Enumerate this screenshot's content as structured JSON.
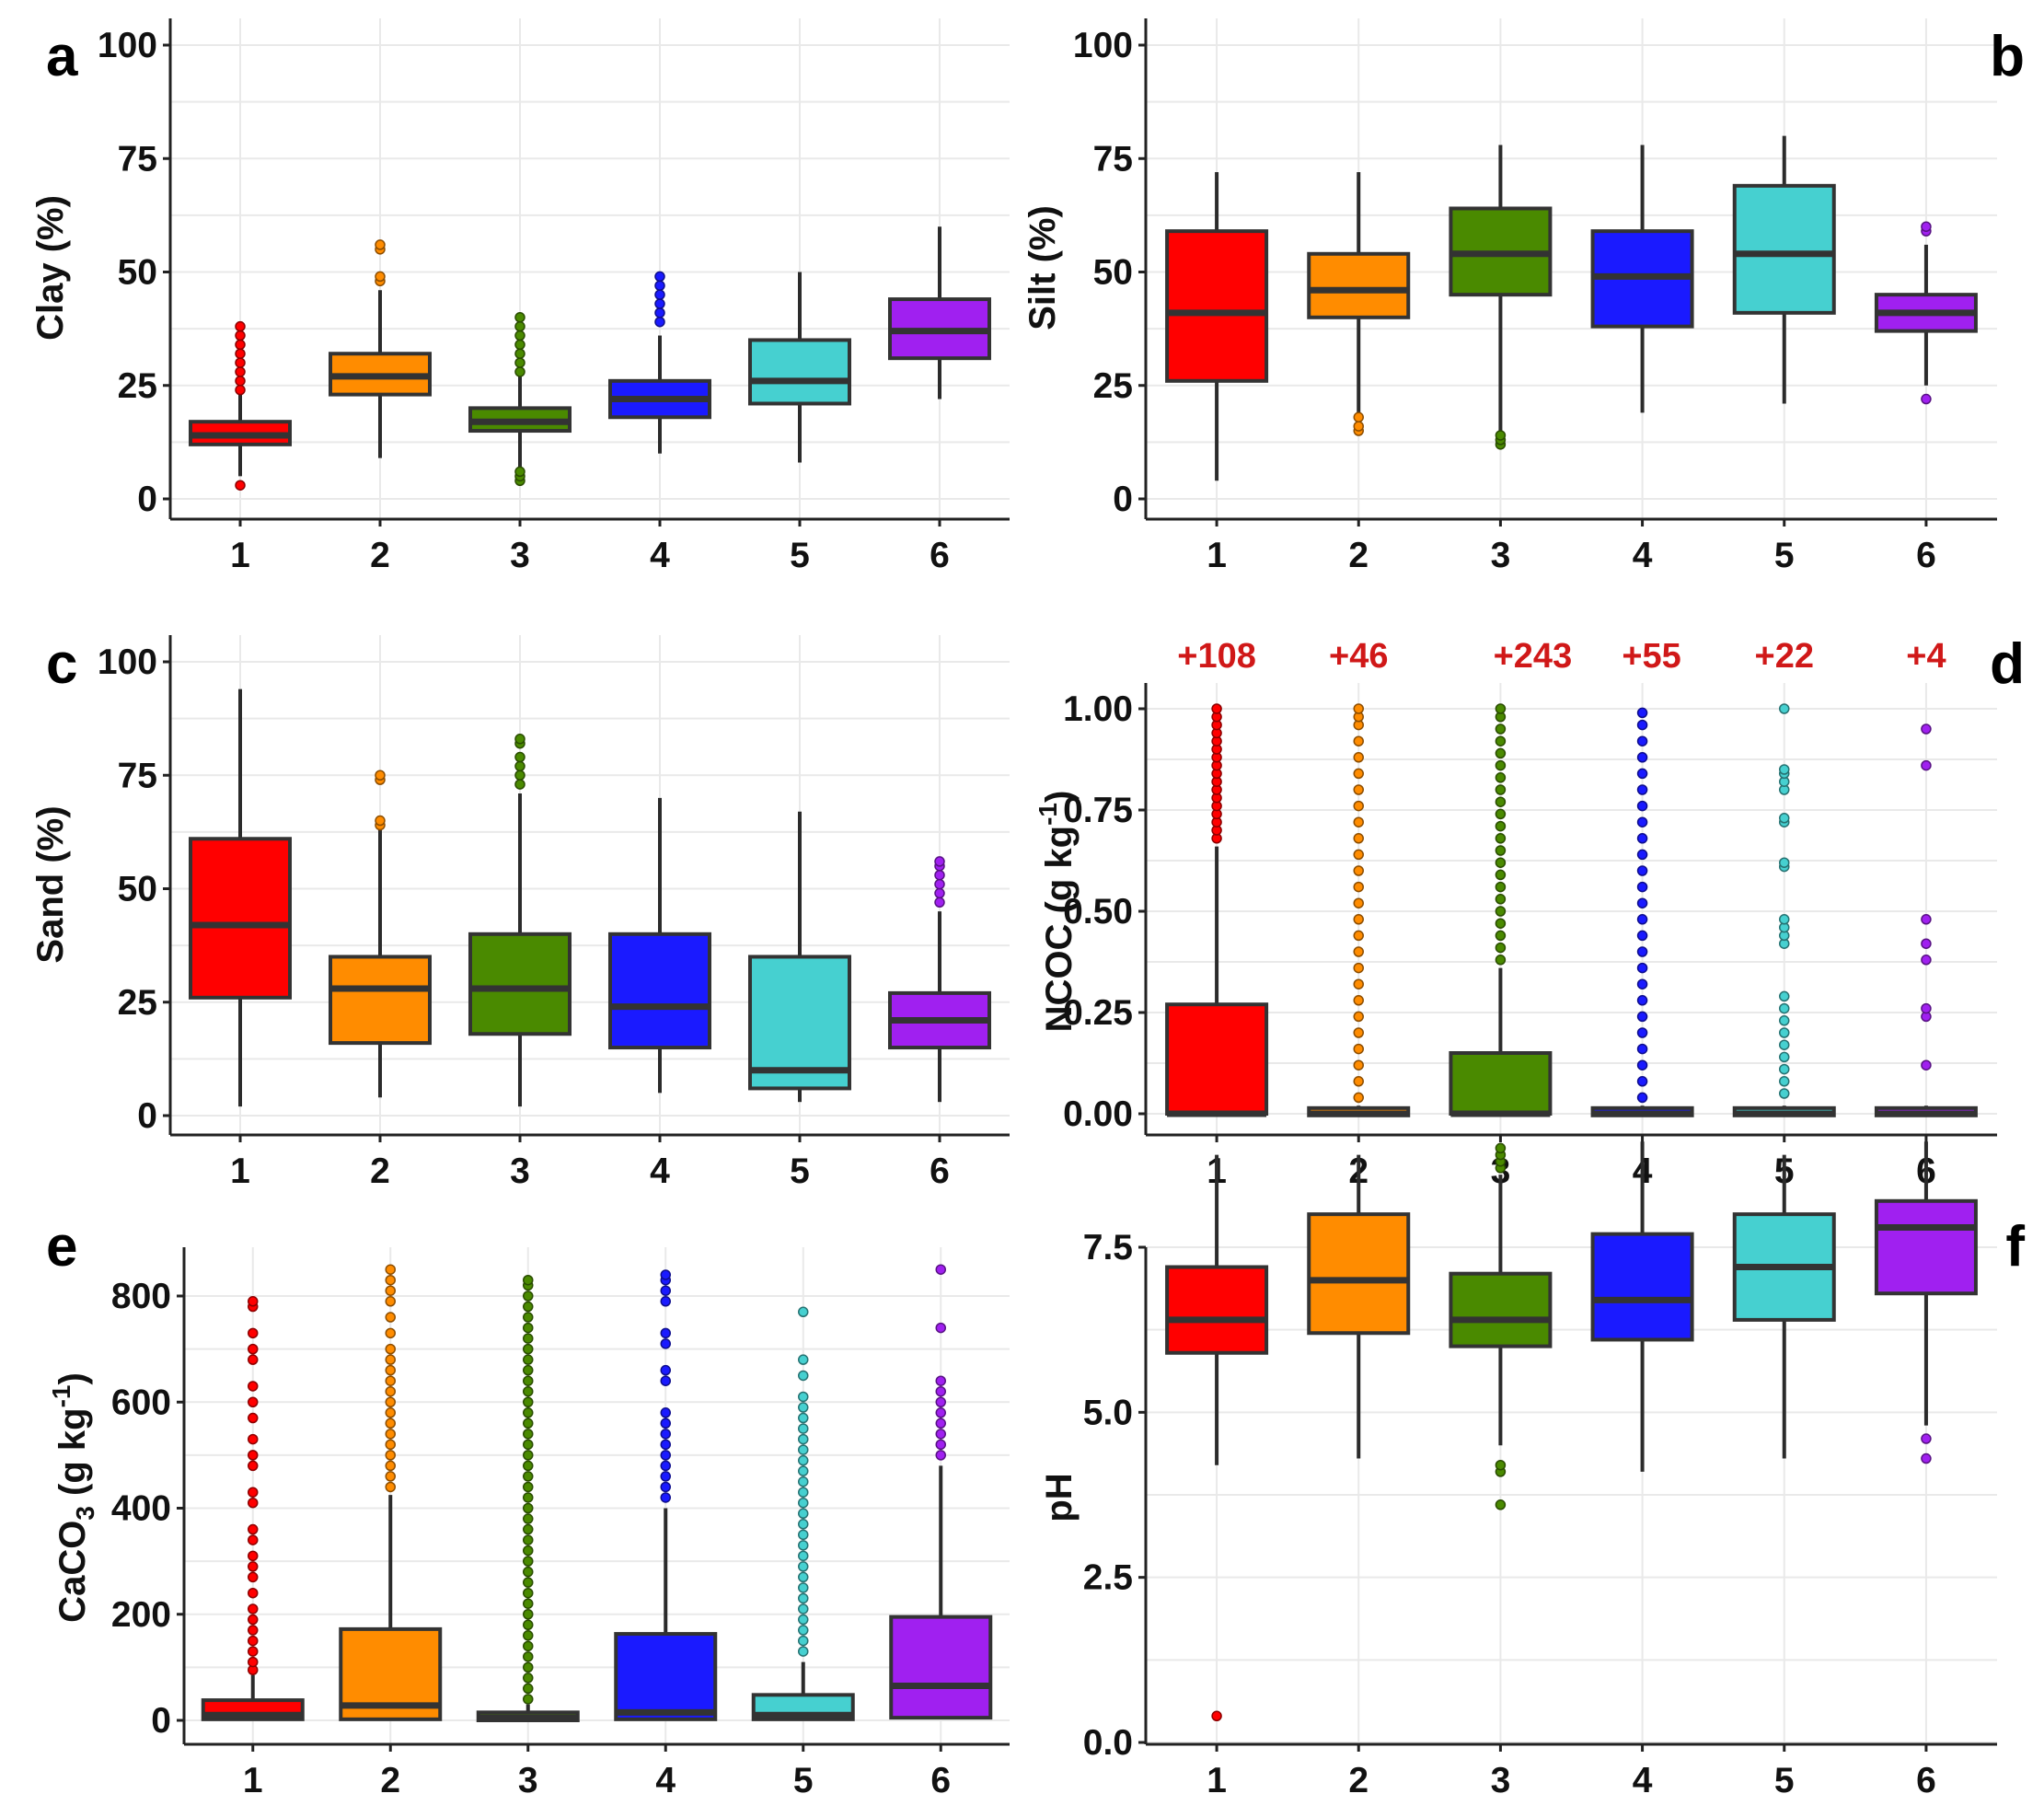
{
  "chart_data": [
    {
      "panel": "a",
      "type": "box",
      "ylabel": "Clay (%)",
      "ylim": [
        0,
        100
      ],
      "yticks": [
        0,
        25,
        50,
        75,
        100
      ],
      "categories": [
        "1",
        "2",
        "3",
        "4",
        "5",
        "6"
      ],
      "colors": [
        "#ff0000",
        "#ff8c00",
        "#4a8a00",
        "#1a1aff",
        "#46d0d0",
        "#a020f0"
      ],
      "boxes": [
        {
          "min": 5,
          "q1": 12,
          "median": 14,
          "q3": 17,
          "max": 23,
          "outliers": [
            3,
            24,
            26,
            28,
            30,
            32,
            34,
            36,
            38
          ]
        },
        {
          "min": 9,
          "q1": 23,
          "median": 27,
          "q3": 32,
          "max": 46,
          "outliers": [
            48,
            49,
            55,
            56
          ]
        },
        {
          "min": 7,
          "q1": 15,
          "median": 17,
          "q3": 20,
          "max": 27,
          "outliers": [
            4,
            5,
            6,
            28,
            30,
            32,
            34,
            36,
            38,
            40
          ]
        },
        {
          "min": 10,
          "q1": 18,
          "median": 22,
          "q3": 26,
          "max": 36,
          "outliers": [
            39,
            41,
            43,
            45,
            47,
            49
          ]
        },
        {
          "min": 8,
          "q1": 21,
          "median": 26,
          "q3": 35,
          "max": 50,
          "outliers": []
        },
        {
          "min": 22,
          "q1": 31,
          "median": 37,
          "q3": 44,
          "max": 60,
          "outliers": []
        }
      ]
    },
    {
      "panel": "b",
      "type": "box",
      "ylabel": "Silt (%)",
      "ylim": [
        0,
        100
      ],
      "yticks": [
        0,
        25,
        50,
        75,
        100
      ],
      "categories": [
        "1",
        "2",
        "3",
        "4",
        "5",
        "6"
      ],
      "colors": [
        "#ff0000",
        "#ff8c00",
        "#4a8a00",
        "#1a1aff",
        "#46d0d0",
        "#a020f0"
      ],
      "boxes": [
        {
          "min": 4,
          "q1": 26,
          "median": 41,
          "q3": 59,
          "max": 72,
          "outliers": []
        },
        {
          "min": 19,
          "q1": 40,
          "median": 46,
          "q3": 54,
          "max": 72,
          "outliers": [
            15,
            16,
            18
          ]
        },
        {
          "min": 15,
          "q1": 45,
          "median": 54,
          "q3": 64,
          "max": 78,
          "outliers": [
            12,
            13,
            14
          ]
        },
        {
          "min": 19,
          "q1": 38,
          "median": 49,
          "q3": 59,
          "max": 78,
          "outliers": []
        },
        {
          "min": 21,
          "q1": 41,
          "median": 54,
          "q3": 69,
          "max": 80,
          "outliers": []
        },
        {
          "min": 25,
          "q1": 37,
          "median": 41,
          "q3": 45,
          "max": 56,
          "outliers": [
            22,
            59,
            60
          ]
        }
      ]
    },
    {
      "panel": "c",
      "type": "box",
      "ylabel": "Sand (%)",
      "ylim": [
        0,
        100
      ],
      "yticks": [
        0,
        25,
        50,
        75,
        100
      ],
      "categories": [
        "1",
        "2",
        "3",
        "4",
        "5",
        "6"
      ],
      "colors": [
        "#ff0000",
        "#ff8c00",
        "#4a8a00",
        "#1a1aff",
        "#46d0d0",
        "#a020f0"
      ],
      "boxes": [
        {
          "min": 2,
          "q1": 26,
          "median": 42,
          "q3": 61,
          "max": 94,
          "outliers": []
        },
        {
          "min": 4,
          "q1": 16,
          "median": 28,
          "q3": 35,
          "max": 63,
          "outliers": [
            64,
            65,
            74,
            75
          ]
        },
        {
          "min": 2,
          "q1": 18,
          "median": 28,
          "q3": 40,
          "max": 71,
          "outliers": [
            73,
            75,
            77,
            79,
            82,
            83
          ]
        },
        {
          "min": 5,
          "q1": 15,
          "median": 24,
          "q3": 40,
          "max": 70,
          "outliers": []
        },
        {
          "min": 3,
          "q1": 6,
          "median": 10,
          "q3": 35,
          "max": 67,
          "outliers": []
        },
        {
          "min": 3,
          "q1": 15,
          "median": 21,
          "q3": 27,
          "max": 45,
          "outliers": [
            47,
            49,
            51,
            53,
            55,
            56
          ]
        }
      ]
    },
    {
      "panel": "d",
      "type": "box",
      "ylabel": "NCOC (g kg-1)",
      "ylim": [
        -0.04,
        1.05
      ],
      "yticks": [
        0.0,
        0.25,
        0.5,
        0.75,
        1.0
      ],
      "ytick_labels": [
        "0.00",
        "0.25",
        "0.50",
        "0.75",
        "1.00"
      ],
      "categories": [
        "1",
        "2",
        "3",
        "4",
        "5",
        "6"
      ],
      "outlier_counts": [
        "+108",
        "+46",
        "+243",
        "+55",
        "+22",
        "+4"
      ],
      "colors": [
        "#ff0000",
        "#ff8c00",
        "#4a8a00",
        "#1a1aff",
        "#46d0d0",
        "#a020f0"
      ],
      "boxes": [
        {
          "min": 0,
          "q1": 0,
          "median": 0,
          "q3": 0.27,
          "max": 0.66,
          "outliers": [
            0.68,
            0.7,
            0.72,
            0.74,
            0.76,
            0.78,
            0.8,
            0.82,
            0.84,
            0.86,
            0.88,
            0.9,
            0.92,
            0.94,
            0.96,
            0.98,
            1.0
          ]
        },
        {
          "min": 0,
          "q1": 0,
          "median": 0,
          "q3": 0.01,
          "max": 0.02,
          "outliers": [
            0.04,
            0.08,
            0.12,
            0.16,
            0.2,
            0.24,
            0.28,
            0.32,
            0.36,
            0.4,
            0.44,
            0.48,
            0.52,
            0.56,
            0.6,
            0.64,
            0.68,
            0.72,
            0.76,
            0.8,
            0.84,
            0.88,
            0.92,
            0.96,
            0.98,
            1.0
          ]
        },
        {
          "min": 0,
          "q1": 0,
          "median": 0,
          "q3": 0.15,
          "max": 0.36,
          "outliers": [
            0.38,
            0.41,
            0.44,
            0.47,
            0.5,
            0.53,
            0.56,
            0.59,
            0.62,
            0.65,
            0.68,
            0.71,
            0.74,
            0.77,
            0.8,
            0.83,
            0.86,
            0.89,
            0.92,
            0.95,
            0.98,
            1.0
          ]
        },
        {
          "min": 0,
          "q1": 0,
          "median": 0,
          "q3": 0.01,
          "max": 0.02,
          "outliers": [
            0.04,
            0.08,
            0.12,
            0.16,
            0.2,
            0.24,
            0.28,
            0.32,
            0.36,
            0.4,
            0.44,
            0.48,
            0.52,
            0.56,
            0.6,
            0.64,
            0.68,
            0.72,
            0.76,
            0.8,
            0.84,
            0.88,
            0.92,
            0.96,
            0.99
          ]
        },
        {
          "min": 0,
          "q1": 0,
          "median": 0,
          "q3": 0.01,
          "max": 0.02,
          "outliers": [
            0.05,
            0.08,
            0.11,
            0.14,
            0.17,
            0.2,
            0.23,
            0.26,
            0.29,
            0.42,
            0.44,
            0.46,
            0.48,
            0.61,
            0.62,
            0.72,
            0.73,
            0.8,
            0.82,
            0.84,
            0.85,
            1.0
          ]
        },
        {
          "min": 0,
          "q1": 0,
          "median": 0,
          "q3": 0.01,
          "max": 0.02,
          "outliers": [
            0.12,
            0.24,
            0.26,
            0.38,
            0.42,
            0.48,
            0.86,
            0.95
          ]
        }
      ]
    },
    {
      "panel": "e",
      "type": "box",
      "ylabel": "CaCO3 (g kg-1)",
      "ylim": [
        -40,
        900
      ],
      "yticks": [
        0,
        200,
        400,
        600,
        800
      ],
      "categories": [
        "1",
        "2",
        "3",
        "4",
        "5",
        "6"
      ],
      "colors": [
        "#ff0000",
        "#ff8c00",
        "#4a8a00",
        "#1a1aff",
        "#46d0d0",
        "#a020f0"
      ],
      "boxes": [
        {
          "min": 0,
          "q1": 2,
          "median": 10,
          "q3": 38,
          "max": 85,
          "outliers": [
            95,
            110,
            130,
            150,
            170,
            190,
            210,
            240,
            270,
            290,
            310,
            340,
            360,
            410,
            430,
            480,
            500,
            530,
            570,
            600,
            630,
            680,
            700,
            730,
            780,
            790
          ]
        },
        {
          "min": 0,
          "q1": 2,
          "median": 28,
          "q3": 172,
          "max": 425,
          "outliers": [
            440,
            460,
            480,
            500,
            520,
            540,
            560,
            580,
            600,
            620,
            640,
            660,
            680,
            700,
            730,
            760,
            790,
            810,
            830,
            850
          ]
        },
        {
          "min": 0,
          "q1": 0,
          "median": 5,
          "q3": 15,
          "max": 30,
          "outliers": [
            40,
            60,
            80,
            100,
            120,
            140,
            160,
            180,
            200,
            220,
            240,
            260,
            280,
            300,
            320,
            340,
            360,
            380,
            400,
            420,
            440,
            460,
            480,
            500,
            520,
            540,
            560,
            580,
            600,
            620,
            640,
            660,
            680,
            700,
            720,
            740,
            760,
            780,
            800,
            820,
            830
          ]
        },
        {
          "min": 0,
          "q1": 2,
          "median": 15,
          "q3": 163,
          "max": 400,
          "outliers": [
            420,
            440,
            460,
            480,
            500,
            520,
            540,
            560,
            580,
            640,
            660,
            710,
            730,
            790,
            810,
            830,
            840
          ]
        },
        {
          "min": 0,
          "q1": 2,
          "median": 10,
          "q3": 48,
          "max": 110,
          "outliers": [
            130,
            150,
            170,
            190,
            210,
            230,
            250,
            270,
            290,
            310,
            330,
            350,
            370,
            390,
            410,
            430,
            450,
            470,
            490,
            510,
            530,
            550,
            570,
            590,
            610,
            650,
            680,
            770
          ]
        },
        {
          "min": 5,
          "q1": 5,
          "median": 65,
          "q3": 195,
          "max": 480,
          "outliers": [
            500,
            520,
            540,
            560,
            580,
            600,
            620,
            640,
            740,
            850
          ]
        }
      ]
    },
    {
      "panel": "f",
      "type": "box",
      "ylabel": "pH",
      "ylim": [
        0,
        9.5
      ],
      "yticks": [
        0.0,
        2.5,
        5.0,
        7.5
      ],
      "ytick_labels": [
        "0.0",
        "2.5",
        "5.0",
        "7.5"
      ],
      "categories": [
        "1",
        "2",
        "3",
        "4",
        "5",
        "6"
      ],
      "colors": [
        "#ff0000",
        "#ff8c00",
        "#4a8a00",
        "#1a1aff",
        "#46d0d0",
        "#a020f0"
      ],
      "boxes": [
        {
          "min": 4.2,
          "q1": 5.9,
          "median": 6.4,
          "q3": 7.2,
          "max": 8.9,
          "outliers": [
            0.4
          ]
        },
        {
          "min": 4.3,
          "q1": 6.2,
          "median": 7.0,
          "q3": 8.0,
          "max": 8.9,
          "outliers": []
        },
        {
          "min": 4.5,
          "q1": 6.0,
          "median": 6.4,
          "q3": 7.1,
          "max": 8.6,
          "outliers": [
            3.6,
            4.1,
            4.2,
            8.7,
            8.8,
            8.9,
            9.0
          ]
        },
        {
          "min": 4.1,
          "q1": 6.1,
          "median": 6.7,
          "q3": 7.7,
          "max": 9.1,
          "outliers": []
        },
        {
          "min": 4.3,
          "q1": 6.4,
          "median": 7.2,
          "q3": 8.0,
          "max": 8.9,
          "outliers": []
        },
        {
          "min": 4.8,
          "q1": 6.8,
          "median": 7.8,
          "q3": 8.2,
          "max": 9.1,
          "outliers": [
            4.3,
            4.6
          ]
        }
      ]
    }
  ]
}
